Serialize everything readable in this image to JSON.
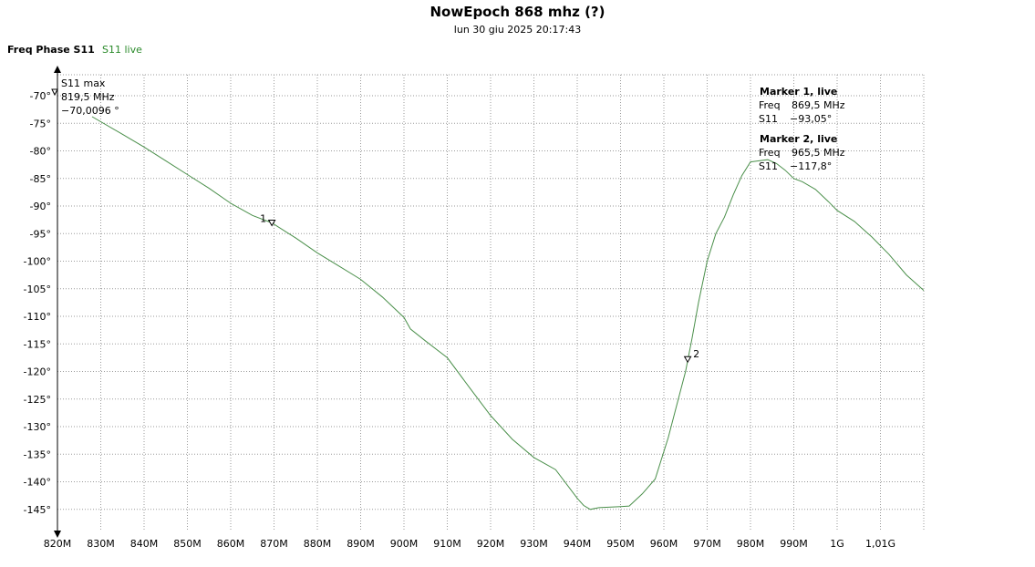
{
  "header": {
    "title": "NowEpoch 868 mhz (?)",
    "timestamp": "lun 30 giu 2025 20:17:43",
    "measurement": "Freq Phase S11",
    "series_label": "S11 live"
  },
  "colors": {
    "trace": "#4a8f4a",
    "series_label": "#2a8a2a",
    "grid": "#9a9a9a"
  },
  "max_marker": {
    "title": "S11 max",
    "freq": "819,5 MHz",
    "value": "−70,0096 °"
  },
  "markers": [
    {
      "id": "1",
      "title": "Marker 1, live",
      "freq_label": "Freq",
      "freq": "869,5 MHz",
      "s11_label": "S11",
      "s11": "−93,05°",
      "x": 869.5,
      "y": -93.05
    },
    {
      "id": "2",
      "title": "Marker 2, live",
      "freq_label": "Freq",
      "freq": "965,5 MHz",
      "s11_label": "S11",
      "s11": "−117,8°",
      "x": 965.5,
      "y": -117.8
    }
  ],
  "chart_data": {
    "type": "line",
    "xlabel": "",
    "ylabel": "",
    "xlim": [
      820,
      1020
    ],
    "ylim": [
      -148,
      -67
    ],
    "x_ticks": [
      820,
      830,
      840,
      850,
      860,
      870,
      880,
      890,
      900,
      910,
      920,
      930,
      940,
      950,
      960,
      970,
      980,
      990,
      1000,
      1010
    ],
    "x_tick_labels": [
      "820M",
      "830M",
      "840M",
      "850M",
      "860M",
      "870M",
      "880M",
      "890M",
      "900M",
      "910M",
      "920M",
      "930M",
      "940M",
      "950M",
      "960M",
      "970M",
      "980M",
      "990M",
      "1G",
      "1,01G"
    ],
    "y_ticks": [
      -70,
      -75,
      -80,
      -85,
      -90,
      -95,
      -100,
      -105,
      -110,
      -115,
      -120,
      -125,
      -130,
      -135,
      -140,
      -145
    ],
    "y_tick_labels": [
      "-70°",
      "-75°",
      "-80°",
      "-85°",
      "-90°",
      "-95°",
      "-100°",
      "-105°",
      "-110°",
      "-115°",
      "-120°",
      "-125°",
      "-130°",
      "-135°",
      "-140°",
      "-145°"
    ],
    "grid": true,
    "series": [
      {
        "name": "S11 live",
        "x": [
          828,
          835,
          840,
          845,
          850,
          855,
          860,
          865,
          869.5,
          875,
          880,
          885,
          890,
          895,
          900,
          901.5,
          905,
          910,
          915,
          920,
          925,
          930,
          935,
          940,
          941.5,
          943,
          945,
          950,
          952,
          955,
          958,
          961,
          963,
          965,
          966.5,
          968,
          970,
          972,
          974,
          976,
          978,
          980,
          982,
          984,
          986,
          988,
          990,
          992,
          995,
          998,
          1000,
          1004,
          1008,
          1012,
          1016,
          1020
        ],
        "y": [
          -73.8,
          -77,
          -79.3,
          -81.8,
          -84.3,
          -86.8,
          -89.5,
          -91.7,
          -93.05,
          -95.8,
          -98.5,
          -100.9,
          -103.3,
          -106.5,
          -110.2,
          -112.3,
          -114.5,
          -117.5,
          -122.8,
          -128,
          -132.3,
          -135.6,
          -137.8,
          -143,
          -144.3,
          -145,
          -144.7,
          -144.5,
          -144.4,
          -142.2,
          -139.5,
          -132,
          -126,
          -120,
          -114,
          -107.5,
          -100,
          -95,
          -92,
          -88,
          -84.5,
          -82,
          -81.8,
          -81.6,
          -82.3,
          -83.5,
          -85,
          -85.6,
          -87,
          -89.2,
          -90.8,
          -92.8,
          -95.6,
          -98.8,
          -102.5,
          -105.3
        ]
      }
    ]
  }
}
